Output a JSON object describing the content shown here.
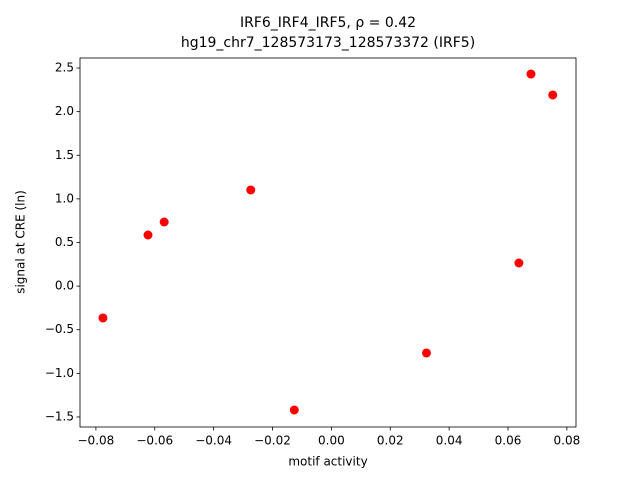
{
  "chart_data": {
    "type": "scatter",
    "title": [
      "IRF6_IRF4_IRF5, ρ = 0.42",
      "hg19_chr7_128573173_128573372 (IRF5)"
    ],
    "xlabel": "motif activity",
    "ylabel": "signal at CRE (ln)",
    "color": "#ff0000",
    "x": [
      -0.0776,
      -0.0623,
      -0.0568,
      -0.0274,
      -0.0126,
      0.0323,
      0.0637,
      0.0678,
      0.0752
    ],
    "values": [
      -0.365,
      0.586,
      0.735,
      1.102,
      -1.42,
      -0.766,
      0.265,
      2.431,
      2.191
    ],
    "xlim": [
      -0.0854,
      0.0831
    ],
    "ylim": [
      -1.615,
      2.615
    ],
    "xticks": [
      {
        "value": -0.08,
        "label": "−0.08"
      },
      {
        "value": -0.06,
        "label": "−0.06"
      },
      {
        "value": -0.04,
        "label": "−0.04"
      },
      {
        "value": -0.02,
        "label": "−0.02"
      },
      {
        "value": 0,
        "label": "0.00"
      },
      0.02,
      0.04,
      0.06,
      0.08
    ],
    "yticks": [
      {
        "value": -1.5,
        "label": "−1.5"
      },
      {
        "value": -1,
        "label": "−1.0"
      },
      {
        "value": -0.5,
        "label": "−0.5"
      },
      {
        "value": 0,
        "label": "0.0"
      },
      0.5,
      {
        "value": 1,
        "label": "1.0"
      },
      1.5,
      {
        "value": 2,
        "label": "2.0"
      },
      2.5
    ]
  }
}
